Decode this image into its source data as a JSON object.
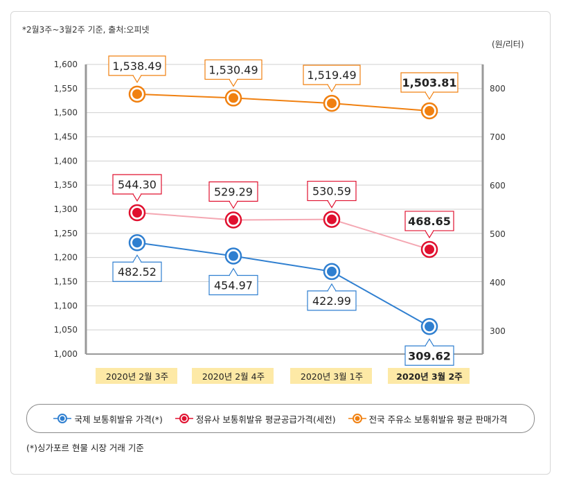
{
  "note": "*2월3주~3월2주 기준, 출처:오피넷",
  "footnote": "(*)싱가포르 현물 시장 거래 기준",
  "chart_data": {
    "type": "line",
    "categories": [
      "2020년 2월 3주",
      "2020년 2월 4주",
      "2020년 3월 1주",
      "2020년 3월 2주"
    ],
    "highlight_category": "2020년 3월 2주",
    "left_axis": {
      "range": [
        1000,
        1600
      ],
      "ticks": [
        "1,000",
        "1,050",
        "1,100",
        "1,150",
        "1,200",
        "1,250",
        "1,300",
        "1,350",
        "1,400",
        "1,450",
        "1,500",
        "1,550",
        "1,600"
      ]
    },
    "right_axis": {
      "unit": "(원/리터)",
      "ticks": [
        "300",
        "400",
        "500",
        "600",
        "700",
        "800"
      ],
      "range_values": [
        300,
        800
      ]
    },
    "grid": true,
    "legend_position": "bottom",
    "series": [
      {
        "name": "국제 보통휘발유 가격(*)",
        "axis": "right",
        "color": "#2f7fd0",
        "values": [
          482.52,
          454.97,
          422.99,
          309.62
        ],
        "labels": [
          "482.52",
          "454.97",
          "422.99",
          "309.62"
        ],
        "label_pos": "below"
      },
      {
        "name": "정유사 보통휘발유 평균공급가격(세전)",
        "axis": "right",
        "color": "#e0102f",
        "line_color": "#f4a7b2",
        "values": [
          544.3,
          529.29,
          530.59,
          468.65
        ],
        "labels": [
          "544.30",
          "529.29",
          "530.59",
          "468.65"
        ],
        "label_pos": "above"
      },
      {
        "name": "전국 주유소 보통휘발유 평균 판매가격",
        "axis": "left",
        "color": "#f08010",
        "values": [
          1538.49,
          1530.49,
          1519.49,
          1503.81
        ],
        "labels": [
          "1,538.49",
          "1,530.49",
          "1,519.49",
          "1,503.81"
        ],
        "label_pos": "above"
      }
    ]
  }
}
